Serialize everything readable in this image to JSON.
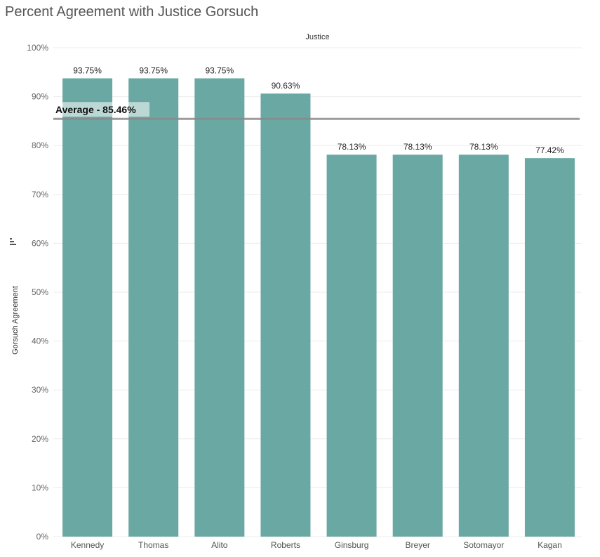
{
  "title": "Percent Agreement with Justice Gorsuch",
  "chart_data": {
    "type": "bar",
    "title": "Percent Agreement with Justice Gorsuch",
    "column_header": "Justice",
    "xlabel": "",
    "ylabel": "Gorsuch Agreement",
    "ylim": [
      0,
      100
    ],
    "y_ticks": [
      "0%",
      "10%",
      "20%",
      "30%",
      "40%",
      "50%",
      "60%",
      "70%",
      "80%",
      "90%",
      "100%"
    ],
    "categories": [
      "Kennedy",
      "Thomas",
      "Alito",
      "Roberts",
      "Ginsburg",
      "Breyer",
      "Sotomayor",
      "Kagan"
    ],
    "values": [
      93.75,
      93.75,
      93.75,
      90.63,
      78.13,
      78.13,
      78.13,
      77.42
    ],
    "data_labels": [
      "93.75%",
      "93.75%",
      "93.75%",
      "90.63%",
      "78.13%",
      "78.13%",
      "78.13%",
      "77.42%"
    ],
    "reference_line": {
      "label": "Average - 85.46%",
      "value": 85.46
    },
    "grid": true,
    "legend": "none",
    "bar_color": "#6aa8a3"
  }
}
